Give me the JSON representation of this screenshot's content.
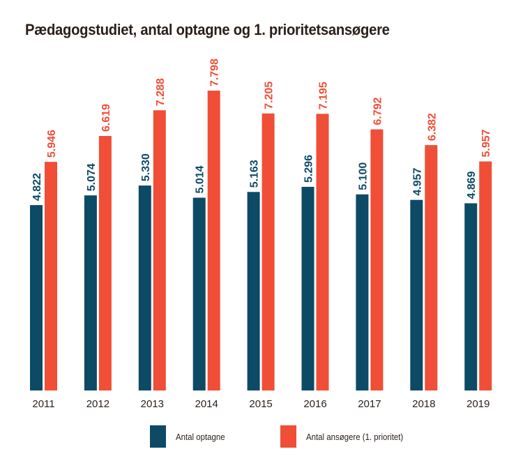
{
  "chart_data": {
    "type": "bar",
    "title": "Pædagogstudiet, antal optagne og 1. prioritetsansøgere",
    "xlabel": "",
    "ylabel": "",
    "categories": [
      "2011",
      "2012",
      "2013",
      "2014",
      "2015",
      "2016",
      "2017",
      "2018",
      "2019"
    ],
    "series": [
      {
        "name": "Antal optagne",
        "color": "#0d4a66",
        "values": [
          4822,
          5074,
          5330,
          5014,
          5163,
          5296,
          5100,
          4957,
          4869
        ],
        "labels": [
          "4.822",
          "5.074",
          "5.330",
          "5.014",
          "5.163",
          "5.296",
          "5.100",
          "4.957",
          "4.869"
        ]
      },
      {
        "name": "Antal ansøgere (1. prioritet)",
        "color": "#f04e37",
        "values": [
          5946,
          6619,
          7288,
          7798,
          7205,
          7195,
          6792,
          6382,
          5957
        ],
        "labels": [
          "5.946",
          "6.619",
          "7.288",
          "7.798",
          "7.205",
          "7.195",
          "6.792",
          "6.382",
          "5.957"
        ]
      }
    ],
    "ylim": [
      0,
      7798
    ],
    "grid": false,
    "legend_position": "bottom-center"
  }
}
